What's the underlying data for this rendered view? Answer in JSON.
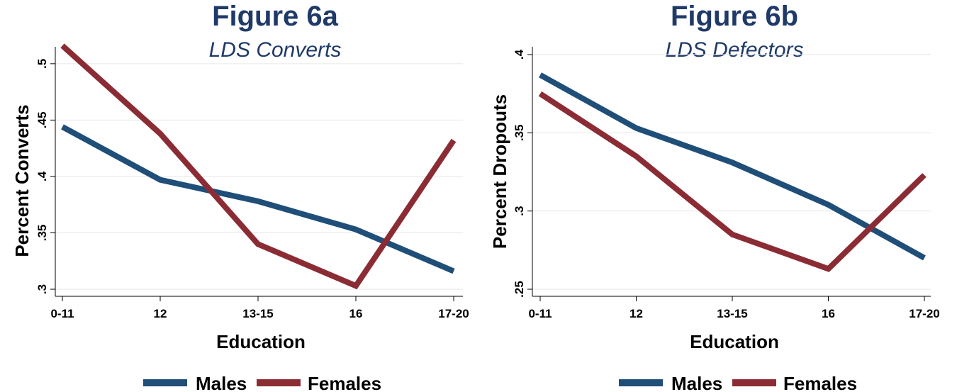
{
  "chart_data": [
    {
      "type": "line",
      "title": "Figure 6a",
      "subtitle": "LDS Converts",
      "xlabel": "Education",
      "ylabel": "Percent Converts",
      "categories": [
        "0-11",
        "12",
        "13-15",
        "16",
        "17-20"
      ],
      "yticks": [
        ".3",
        ".35",
        ".4",
        ".45",
        ".5"
      ],
      "ytick_values": [
        0.3,
        0.35,
        0.4,
        0.45,
        0.5
      ],
      "ylim": [
        0.3,
        0.515
      ],
      "grid": true,
      "legend": "bottom",
      "series": [
        {
          "name": "Males",
          "color": "#1f4e79",
          "values": [
            0.444,
            0.397,
            0.378,
            0.353,
            0.316
          ]
        },
        {
          "name": "Females",
          "color": "#8b2c35",
          "values": [
            0.516,
            0.438,
            0.34,
            0.303,
            0.432
          ]
        }
      ]
    },
    {
      "type": "line",
      "title": "Figure 6b",
      "subtitle": "LDS Defectors",
      "xlabel": "Education",
      "ylabel": "Percent Dropouts",
      "categories": [
        "0-11",
        "12",
        "13-15",
        "16",
        "17-20"
      ],
      "yticks": [
        ".25",
        ".3",
        ".35",
        ".4"
      ],
      "ytick_values": [
        0.25,
        0.3,
        0.35,
        0.4
      ],
      "ylim": [
        0.25,
        0.405
      ],
      "grid": true,
      "legend": "bottom",
      "series": [
        {
          "name": "Males",
          "color": "#1f4e79",
          "values": [
            0.387,
            0.353,
            0.331,
            0.304,
            0.27
          ]
        },
        {
          "name": "Females",
          "color": "#8b2c35",
          "values": [
            0.375,
            0.335,
            0.285,
            0.263,
            0.323
          ]
        }
      ]
    }
  ]
}
